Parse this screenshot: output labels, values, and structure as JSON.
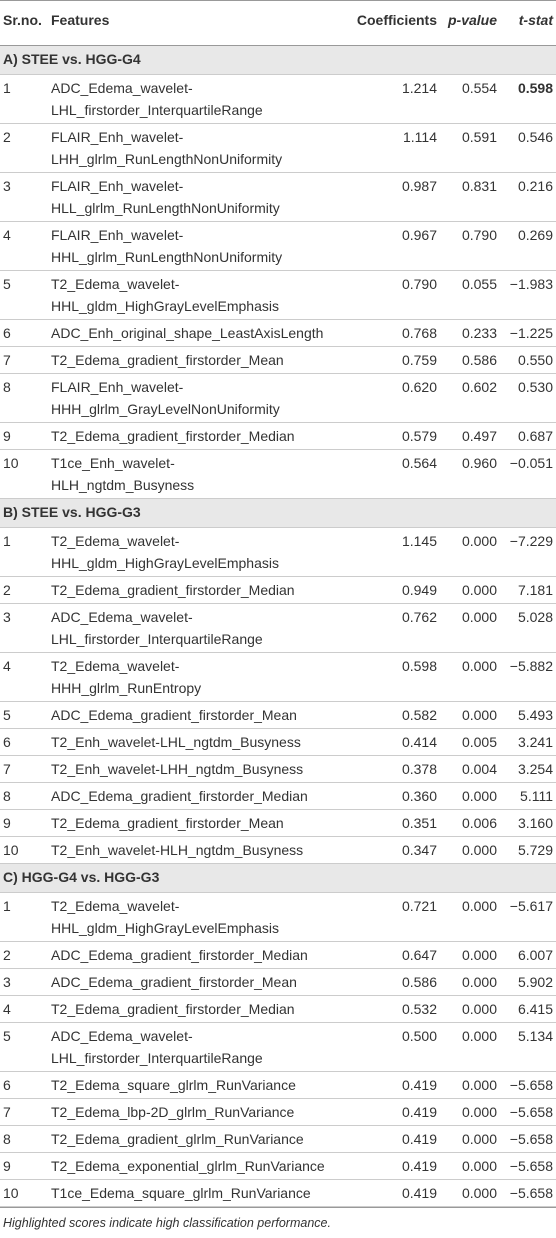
{
  "table": {
    "header": [
      "Sr.no.",
      "Features",
      "Coefficients",
      "p-value",
      "t-stat"
    ],
    "sections": [
      {
        "title": "A) STEE vs. HGG-G4",
        "rows": [
          [
            "1",
            [
              "ADC_Edema_wavelet-",
              "LHL_firstorder_InterquartileRange"
            ],
            "1.214",
            "0.554",
            {
              "text": "0.598",
              "bold": true
            }
          ],
          [
            "2",
            [
              "FLAIR_Enh_wavelet-",
              "LHH_glrlm_RunLengthNonUniformity"
            ],
            "1.114",
            "0.591",
            "0.546"
          ],
          [
            "3",
            [
              "FLAIR_Enh_wavelet-",
              "HLL_glrlm_RunLengthNonUniformity"
            ],
            "0.987",
            "0.831",
            "0.216"
          ],
          [
            "4",
            [
              "FLAIR_Enh_wavelet-",
              "HHL_glrlm_RunLengthNonUniformity"
            ],
            "0.967",
            "0.790",
            "0.269"
          ],
          [
            "5",
            [
              "T2_Edema_wavelet-",
              "HHL_gldm_HighGrayLevelEmphasis"
            ],
            "0.790",
            "0.055",
            "−1.983"
          ],
          [
            "6",
            [
              "ADC_Enh_original_shape_LeastAxisLength"
            ],
            "0.768",
            "0.233",
            "−1.225"
          ],
          [
            "7",
            [
              "T2_Edema_gradient_firstorder_Mean"
            ],
            "0.759",
            "0.586",
            "0.550"
          ],
          [
            "8",
            [
              "FLAIR_Enh_wavelet-",
              "HHH_glrlm_GrayLevelNonUniformity"
            ],
            "0.620",
            "0.602",
            "0.530"
          ],
          [
            "9",
            [
              "T2_Edema_gradient_firstorder_Median"
            ],
            "0.579",
            "0.497",
            "0.687"
          ],
          [
            "10",
            [
              "T1ce_Enh_wavelet-",
              "HLH_ngtdm_Busyness"
            ],
            "0.564",
            "0.960",
            "−0.051"
          ]
        ]
      },
      {
        "title": "B) STEE vs. HGG-G3",
        "rows": [
          [
            "1",
            [
              "T2_Edema_wavelet-",
              "HHL_gldm_HighGrayLevelEmphasis"
            ],
            "1.145",
            "0.000",
            "−7.229"
          ],
          [
            "2",
            [
              "T2_Edema_gradient_firstorder_Median"
            ],
            "0.949",
            "0.000",
            "7.181"
          ],
          [
            "3",
            [
              "ADC_Edema_wavelet-",
              "LHL_firstorder_InterquartileRange"
            ],
            "0.762",
            "0.000",
            "5.028"
          ],
          [
            "4",
            [
              "T2_Edema_wavelet-",
              "HHH_glrlm_RunEntropy"
            ],
            "0.598",
            "0.000",
            "−5.882"
          ],
          [
            "5",
            [
              "ADC_Edema_gradient_firstorder_Mean"
            ],
            "0.582",
            "0.000",
            "5.493"
          ],
          [
            "6",
            [
              "T2_Enh_wavelet-LHL_ngtdm_Busyness"
            ],
            "0.414",
            "0.005",
            "3.241"
          ],
          [
            "7",
            [
              "T2_Enh_wavelet-LHH_ngtdm_Busyness"
            ],
            "0.378",
            "0.004",
            "3.254"
          ],
          [
            "8",
            [
              "ADC_Edema_gradient_firstorder_Median"
            ],
            "0.360",
            "0.000",
            "5.111"
          ],
          [
            "9",
            [
              "T2_Edema_gradient_firstorder_Mean"
            ],
            "0.351",
            "0.006",
            "3.160"
          ],
          [
            "10",
            [
              "T2_Enh_wavelet-HLH_ngtdm_Busyness"
            ],
            "0.347",
            "0.000",
            "5.729"
          ]
        ]
      },
      {
        "title": "C) HGG-G4 vs. HGG-G3",
        "rows": [
          [
            "1",
            [
              "T2_Edema_wavelet-",
              "HHL_gldm_HighGrayLevelEmphasis"
            ],
            "0.721",
            "0.000",
            "−5.617"
          ],
          [
            "2",
            [
              "ADC_Edema_gradient_firstorder_Median"
            ],
            "0.647",
            "0.000",
            "6.007"
          ],
          [
            "3",
            [
              "ADC_Edema_gradient_firstorder_Mean"
            ],
            "0.586",
            "0.000",
            "5.902"
          ],
          [
            "4",
            [
              "T2_Edema_gradient_firstorder_Median"
            ],
            "0.532",
            "0.000",
            "6.415"
          ],
          [
            "5",
            [
              "ADC_Edema_wavelet-",
              "LHL_firstorder_InterquartileRange"
            ],
            "0.500",
            "0.000",
            "5.134"
          ],
          [
            "6",
            [
              "T2_Edema_square_glrlm_RunVariance"
            ],
            "0.419",
            "0.000",
            "−5.658"
          ],
          [
            "7",
            [
              "T2_Edema_lbp-2D_glrlm_RunVariance"
            ],
            "0.419",
            "0.000",
            "−5.658"
          ],
          [
            "8",
            [
              "T2_Edema_gradient_glrlm_RunVariance"
            ],
            "0.419",
            "0.000",
            "−5.658"
          ],
          [
            "9",
            [
              "T2_Edema_exponential_glrlm_RunVariance"
            ],
            "0.419",
            "0.000",
            "−5.658"
          ],
          [
            "10",
            [
              "T1ce_Edema_square_glrlm_RunVariance"
            ],
            "0.419",
            "0.000",
            "−5.658"
          ]
        ]
      }
    ]
  },
  "footnote": "Highlighted scores indicate high classification performance."
}
